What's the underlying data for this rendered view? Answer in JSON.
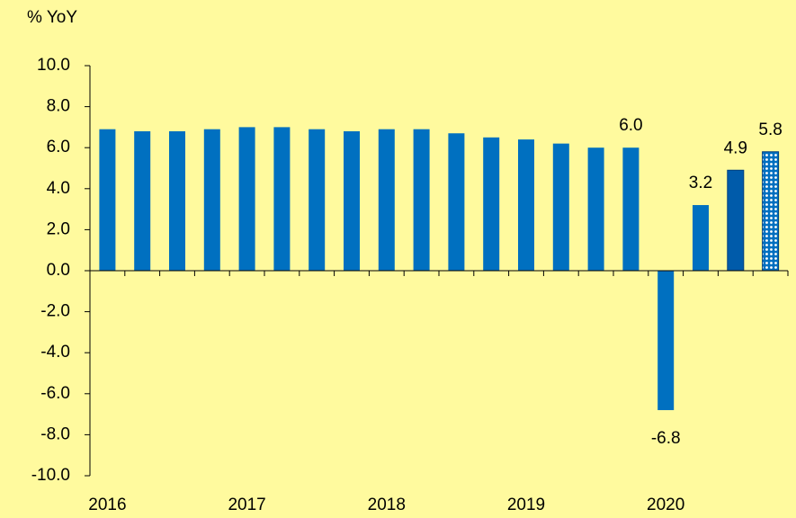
{
  "chart_data": {
    "type": "bar",
    "y_label": "% YoY",
    "categories": [
      "2016",
      null,
      null,
      null,
      "2017",
      null,
      null,
      null,
      "2018",
      null,
      null,
      null,
      "2019",
      null,
      null,
      null,
      "2020",
      null,
      null,
      null
    ],
    "values": [
      6.9,
      6.8,
      6.8,
      6.9,
      7.0,
      7.0,
      6.9,
      6.8,
      6.9,
      6.9,
      6.7,
      6.5,
      6.4,
      6.2,
      6.0,
      6.0,
      -6.8,
      3.2,
      4.9,
      5.8
    ],
    "value_labels": [
      null,
      null,
      null,
      null,
      null,
      null,
      null,
      null,
      null,
      null,
      null,
      null,
      null,
      null,
      null,
      "6.0",
      "-6.8",
      "3.2",
      "4.9",
      "5.8"
    ],
    "colors": [
      "#0070C0",
      "#0070C0",
      "#0070C0",
      "#0070C0",
      "#0070C0",
      "#0070C0",
      "#0070C0",
      "#0070C0",
      "#0070C0",
      "#0070C0",
      "#0070C0",
      "#0070C0",
      "#0070C0",
      "#0070C0",
      "#0070C0",
      "#0070C0",
      "#0070C0",
      "#0070C0",
      "#005BAA",
      "#0070C0"
    ],
    "bar_patterns": [
      null,
      null,
      null,
      null,
      null,
      null,
      null,
      null,
      null,
      null,
      null,
      null,
      null,
      null,
      null,
      null,
      null,
      null,
      null,
      "dots"
    ],
    "ylim": [
      -10,
      10
    ],
    "yticks": [
      {
        "value": -10,
        "label": "-10.0"
      },
      {
        "value": -8,
        "label": "-8.0"
      },
      {
        "value": -6,
        "label": "-6.0"
      },
      {
        "value": -4,
        "label": "-4.0"
      },
      {
        "value": -2,
        "label": "-2.0"
      },
      {
        "value": 0,
        "label": "0.0"
      },
      {
        "value": 2,
        "label": "2.0"
      },
      {
        "value": 4,
        "label": "4.0"
      },
      {
        "value": 6,
        "label": "6.0"
      },
      {
        "value": 8,
        "label": "8.0"
      },
      {
        "value": 10,
        "label": "10.0"
      }
    ],
    "grid": false
  }
}
